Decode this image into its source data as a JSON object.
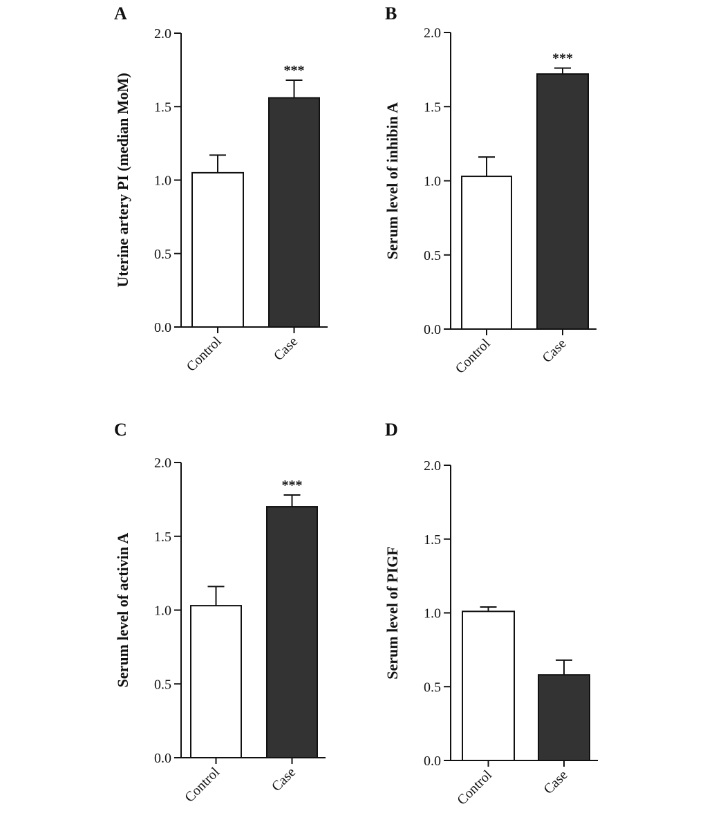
{
  "chart_data": [
    {
      "type": "bar",
      "panel": "A",
      "categories": [
        "Control",
        "Case"
      ],
      "values": [
        1.05,
        1.56
      ],
      "errors": [
        0.12,
        0.12
      ],
      "significance": [
        "",
        "***"
      ],
      "ylabel": "Uterine artery PI (median  MoM)",
      "ylim": [
        0,
        2.0
      ],
      "yticks": [
        "0.0",
        "0.5",
        "1.0",
        "1.5",
        "2.0"
      ],
      "colors": [
        "#ffffff",
        "#333333"
      ]
    },
    {
      "type": "bar",
      "panel": "B",
      "categories": [
        "Control",
        "Case"
      ],
      "values": [
        1.03,
        1.72
      ],
      "errors": [
        0.13,
        0.04
      ],
      "significance": [
        "",
        "***"
      ],
      "ylabel": "Serum level of inhibin A",
      "ylim": [
        0,
        2.0
      ],
      "yticks": [
        "0.0",
        "0.5",
        "1.0",
        "1.5",
        "2.0"
      ],
      "colors": [
        "#ffffff",
        "#333333"
      ]
    },
    {
      "type": "bar",
      "panel": "C",
      "categories": [
        "Control",
        "Case"
      ],
      "values": [
        1.03,
        1.7
      ],
      "errors": [
        0.13,
        0.08
      ],
      "significance": [
        "",
        "***"
      ],
      "ylabel": "Serum level of activin A",
      "ylim": [
        0,
        2.0
      ],
      "yticks": [
        "0.0",
        "0.5",
        "1.0",
        "1.5",
        "2.0"
      ],
      "colors": [
        "#ffffff",
        "#333333"
      ]
    },
    {
      "type": "bar",
      "panel": "D",
      "categories": [
        "Control",
        "Case"
      ],
      "values": [
        1.01,
        0.58
      ],
      "errors": [
        0.03,
        0.1
      ],
      "significance": [
        "",
        ""
      ],
      "ylabel": "Serum level of PIGF",
      "ylim": [
        0,
        2.0
      ],
      "yticks": [
        "0.0",
        "0.5",
        "1.0",
        "1.5",
        "2.0"
      ],
      "colors": [
        "#ffffff",
        "#333333"
      ]
    }
  ]
}
